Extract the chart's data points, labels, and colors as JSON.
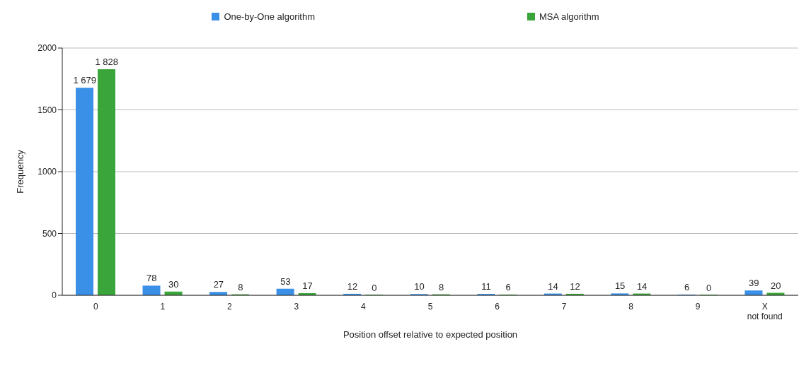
{
  "chart_data": {
    "type": "bar",
    "xlabel": "Position offset relative to expected position",
    "ylabel": "Frequency",
    "categories": [
      "0",
      "1",
      "2",
      "3",
      "4",
      "5",
      "6",
      "7",
      "8",
      "9",
      "X\nnot found"
    ],
    "series": [
      {
        "name": "One-by-One algorithm",
        "color": "#3a8fe6",
        "values": [
          1679,
          78,
          27,
          53,
          12,
          10,
          11,
          14,
          15,
          6,
          39
        ],
        "value_labels": [
          "1 679",
          "78",
          "27",
          "53",
          "12",
          "10",
          "11",
          "14",
          "15",
          "6",
          "39"
        ]
      },
      {
        "name": "MSA algorithm",
        "color": "#3aa53a",
        "values": [
          1828,
          30,
          8,
          17,
          0,
          8,
          6,
          12,
          14,
          0,
          20
        ],
        "value_labels": [
          "1 828",
          "30",
          "8",
          "17",
          "0",
          "8",
          "6",
          "12",
          "14",
          "0",
          "20"
        ]
      }
    ],
    "ylim": [
      0,
      2000
    ],
    "yticks": [
      0,
      500,
      1000,
      1500,
      2000
    ],
    "grid": "y",
    "legend": "top"
  }
}
